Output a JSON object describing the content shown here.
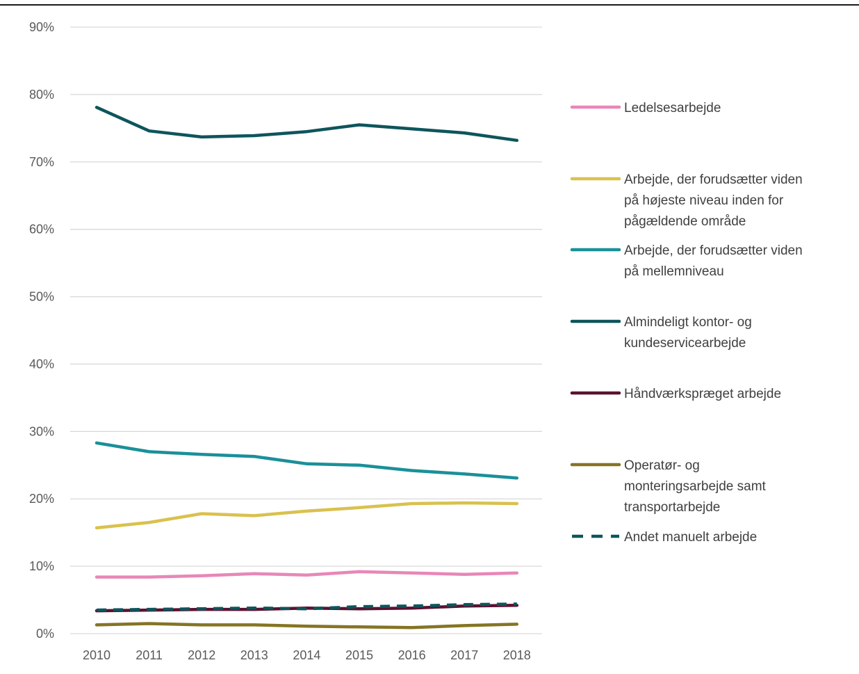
{
  "chart_data": {
    "type": "line",
    "title": "",
    "xlabel": "",
    "ylabel": "",
    "x": [
      "2010",
      "2011",
      "2012",
      "2013",
      "2014",
      "2015",
      "2016",
      "2017",
      "2018"
    ],
    "ylim": [
      0,
      0.9
    ],
    "yticks": [
      "0%",
      "10%",
      "20%",
      "30%",
      "40%",
      "50%",
      "60%",
      "70%",
      "80%",
      "90%"
    ],
    "grid": true,
    "legend_position": "right",
    "series": [
      {
        "name": "Ledelsesarbejde",
        "legend_lines": [
          "Ledelsesarbejde"
        ],
        "color": "#e887b8",
        "dashed": false,
        "values": [
          0.084,
          0.084,
          0.086,
          0.089,
          0.087,
          0.092,
          0.09,
          0.088,
          0.09
        ]
      },
      {
        "name": "Arbejde, der forudsætter viden på højeste niveau inden for pågældende område",
        "legend_lines": [
          "Arbejde, der forudsætter viden",
          "på højeste niveau inden for",
          "pågældende område"
        ],
        "color": "#d9c14e",
        "dashed": false,
        "values": [
          0.157,
          0.165,
          0.178,
          0.175,
          0.182,
          0.187,
          0.193,
          0.194,
          0.193
        ]
      },
      {
        "name": "Arbejde, der forudsætter viden på mellemniveau",
        "legend_lines": [
          "Arbejde, der forudsætter viden",
          "på mellemniveau"
        ],
        "color": "#1a9099",
        "dashed": false,
        "values": [
          0.283,
          0.27,
          0.266,
          0.263,
          0.252,
          0.25,
          0.242,
          0.237,
          0.231
        ]
      },
      {
        "name": "Almindeligt kontor- og kundeservicearbejde",
        "legend_lines": [
          "Almindeligt kontor- og",
          "kundeservicearbejde"
        ],
        "color": "#0e555c",
        "dashed": false,
        "values": [
          0.781,
          0.746,
          0.737,
          0.739,
          0.745,
          0.755,
          0.749,
          0.743,
          0.732
        ]
      },
      {
        "name": "Håndværkspræget arbejde",
        "legend_lines": [
          "Håndværkspræget arbejde"
        ],
        "color": "#5a1230",
        "dashed": false,
        "values": [
          0.034,
          0.035,
          0.036,
          0.036,
          0.038,
          0.037,
          0.038,
          0.041,
          0.042
        ]
      },
      {
        "name": "Operatør- og monteringsarbejde samt transportarbejde",
        "legend_lines": [
          "Operatør- og",
          "monteringsarbejde samt",
          "transportarbejde"
        ],
        "color": "#857424",
        "dashed": false,
        "values": [
          0.013,
          0.015,
          0.013,
          0.013,
          0.011,
          0.01,
          0.009,
          0.012,
          0.014
        ]
      },
      {
        "name": "Andet manuelt arbejde",
        "legend_lines": [
          "Andet manuelt arbejde"
        ],
        "color": "#0e555c",
        "dashed": true,
        "values": [
          0.035,
          0.036,
          0.037,
          0.038,
          0.037,
          0.04,
          0.041,
          0.043,
          0.044
        ]
      }
    ]
  }
}
